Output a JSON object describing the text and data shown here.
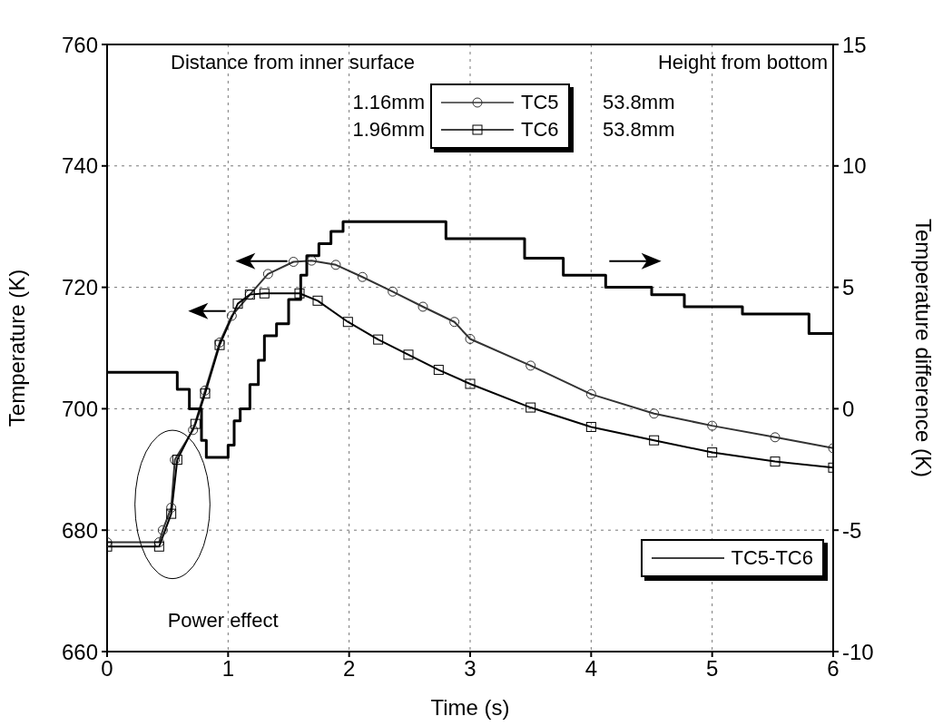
{
  "chart_data": {
    "type": "line",
    "xlabel": "Time (s)",
    "ylabel": "Temperature (K)",
    "y2label": "Temperature difference (K)",
    "xlim": [
      0,
      6
    ],
    "xticks": [
      0,
      1,
      2,
      3,
      4,
      5,
      6
    ],
    "ylim": [
      660,
      760
    ],
    "yticks": [
      660,
      680,
      700,
      720,
      740,
      760
    ],
    "y2lim": [
      -10,
      15
    ],
    "y2ticks": [
      -10,
      -5,
      0,
      5,
      10,
      15
    ],
    "grid": true,
    "legend": "top",
    "line_style": "solid",
    "series": [
      {
        "name": "TC5",
        "color": "#333333",
        "marker": "circle",
        "x": [
          0,
          0.43,
          0.46,
          0.53,
          0.56,
          0.71,
          0.81,
          0.93,
          1.03,
          1.18,
          1.33,
          1.54,
          1.69,
          1.89,
          2.11,
          2.36,
          2.61,
          2.87,
          3.0,
          3.5,
          4.0,
          4.52,
          5.0,
          5.52,
          6.0
        ],
        "values": [
          678,
          678,
          680,
          683.7,
          691.6,
          696.5,
          703,
          710.9,
          715.3,
          718.8,
          722.2,
          724.2,
          724.4,
          723.7,
          721.7,
          719.3,
          716.8,
          714.3,
          711.5,
          707.1,
          702.4,
          699.2,
          697.2,
          695.3,
          693.5
        ]
      },
      {
        "name": "TC6",
        "color": "#000000",
        "marker": "square",
        "x": [
          0,
          0.43,
          0.53,
          0.58,
          0.73,
          0.81,
          0.93,
          1.08,
          1.18,
          1.3,
          1.59,
          1.74,
          1.99,
          2.24,
          2.49,
          2.74,
          3.0,
          3.5,
          4.0,
          4.52,
          5.0,
          5.52,
          6.0
        ],
        "values": [
          677.3,
          677.3,
          682.7,
          691.6,
          697.5,
          702.5,
          710.5,
          717.3,
          718.8,
          719,
          719,
          717.8,
          714.3,
          711.4,
          708.9,
          706.4,
          704.1,
          700.2,
          697,
          694.8,
          692.8,
          691.3,
          690.3
        ]
      },
      {
        "name": "TC5-TC6",
        "color": "#000000",
        "type": "step",
        "axis": "y2",
        "x": [
          0,
          0.58,
          0.68,
          0.78,
          0.82,
          1.0,
          1.05,
          1.1,
          1.18,
          1.25,
          1.3,
          1.4,
          1.5,
          1.6,
          1.65,
          1.75,
          1.85,
          1.95,
          2.8,
          3.13,
          3.45,
          3.77,
          4.12,
          4.5,
          4.77,
          5.25,
          5.8,
          6.0
        ],
        "values": [
          1.5,
          0.8,
          0,
          -1.3,
          -2,
          -1.5,
          -0.5,
          0,
          1,
          2,
          3,
          3.5,
          4.5,
          5.5,
          6.3,
          6.8,
          7.3,
          7.7,
          7.0,
          7.0,
          6.2,
          5.5,
          5.0,
          4.7,
          4.2,
          3.9,
          3.1,
          3.1
        ]
      }
    ],
    "annotations": [
      "Distance from inner surface",
      "Height from bottom",
      "1.16mm",
      "1.96mm",
      "53.8mm",
      "53.8mm",
      "Power effect"
    ]
  }
}
